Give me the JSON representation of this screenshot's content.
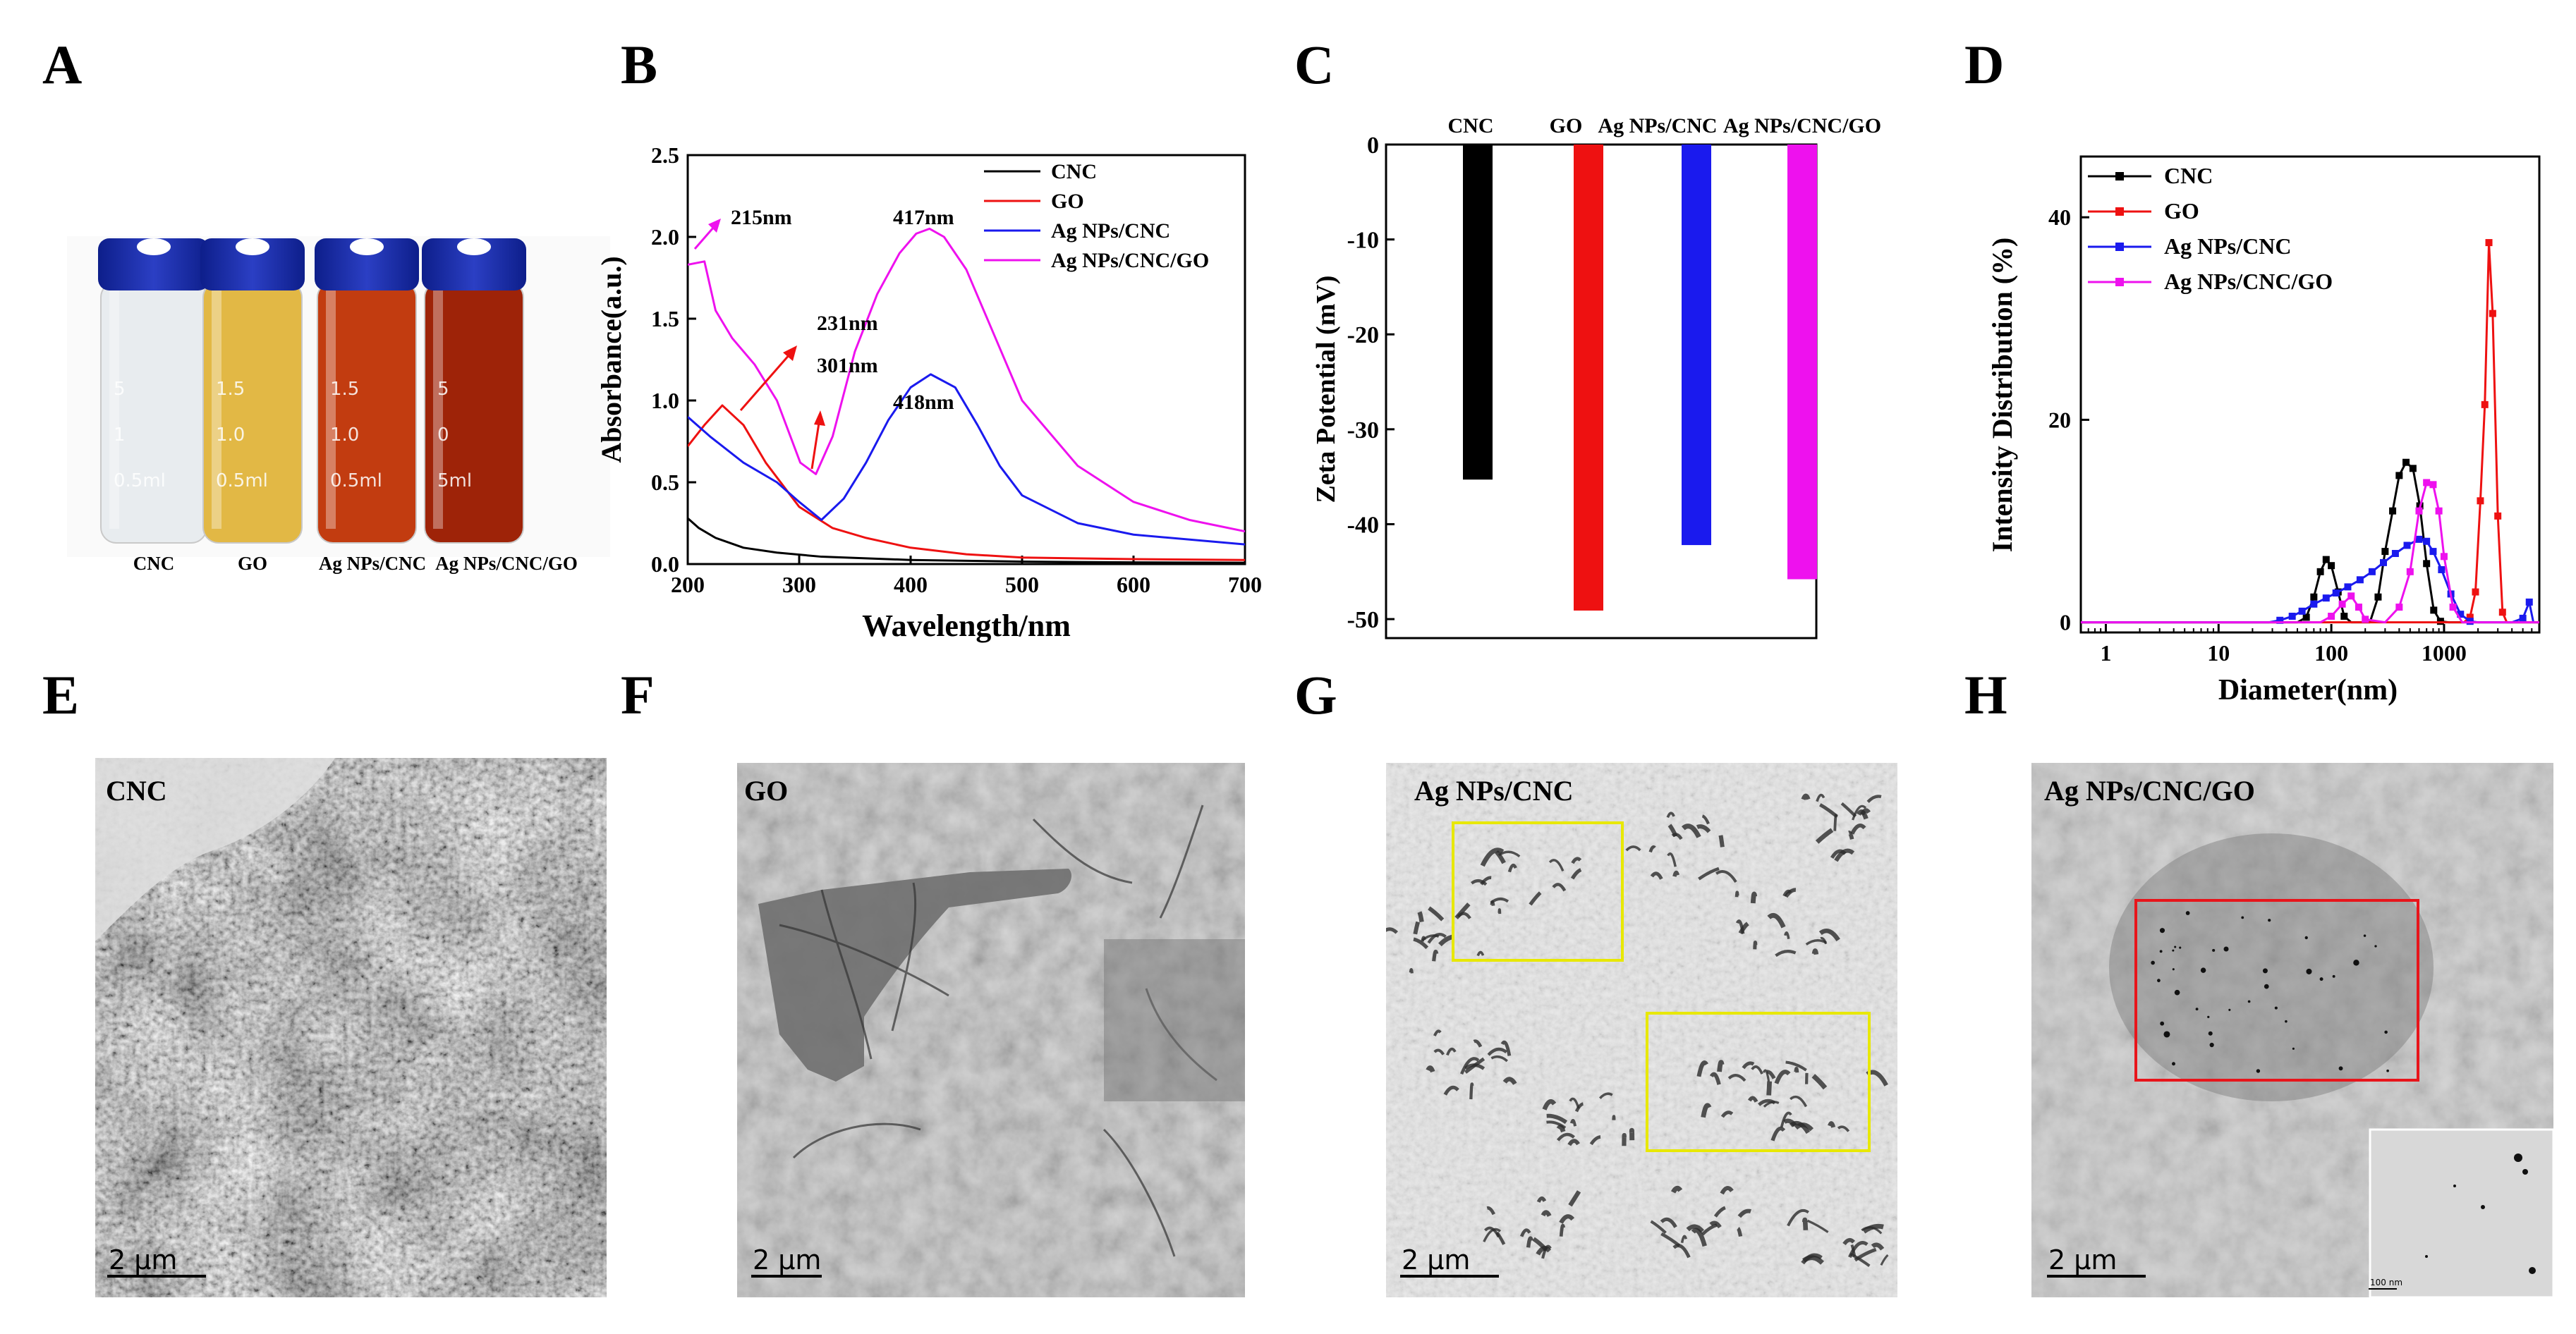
{
  "panel_letters": [
    "A",
    "B",
    "C",
    "D",
    "E",
    "F",
    "G",
    "H"
  ],
  "colors": {
    "CNC": "#000000",
    "GO": "#ee1111",
    "Ag NPs/CNC": "#1a1aee",
    "Ag NPs/CNC/GO": "#ee11ee",
    "box_yellow": "#e8e800",
    "box_red": "#e8151b"
  },
  "photo_vials": {
    "labels": [
      "CNC",
      "GO",
      "Ag NPs/CNC",
      "Ag NPs/CNC/GO"
    ],
    "vial_markings": [
      [
        "5",
        "1",
        "0.5ml"
      ],
      [
        "1.5",
        "1.0",
        "0.5ml"
      ],
      [
        "1.5",
        "1.0",
        "0.5ml"
      ],
      [
        "5",
        "0",
        "5ml"
      ]
    ],
    "liquid_colors": [
      "#e8ecef",
      "#e2b845",
      "#c23c10",
      "#9e2308"
    ]
  },
  "chart_data": [
    {
      "panel": "B",
      "type": "line",
      "xlabel": "Wavelength/nm",
      "ylabel": "Absorbance(a.u.)",
      "xlim": [
        200,
        700
      ],
      "ylim": [
        0,
        2.5
      ],
      "xticks": [
        "200",
        "300",
        "400",
        "500",
        "600",
        "700"
      ],
      "yticks": [
        "0.0",
        "0.5",
        "1.0",
        "1.5",
        "2.0",
        "2.5"
      ],
      "legend": [
        "CNC",
        "GO",
        "Ag NPs/CNC",
        "Ag NPs/CNC/GO"
      ],
      "series": [
        {
          "name": "CNC",
          "x": [
            200,
            210,
            225,
            250,
            280,
            320,
            400,
            500,
            600,
            700
          ],
          "y": [
            0.28,
            0.22,
            0.16,
            0.1,
            0.07,
            0.045,
            0.025,
            0.015,
            0.01,
            0.008
          ]
        },
        {
          "name": "GO",
          "x": [
            200,
            215,
            231,
            250,
            270,
            300,
            330,
            360,
            400,
            450,
            500,
            600,
            700
          ],
          "y": [
            0.72,
            0.85,
            0.97,
            0.85,
            0.62,
            0.35,
            0.22,
            0.16,
            0.1,
            0.06,
            0.04,
            0.03,
            0.025
          ]
        },
        {
          "name": "Ag NPs/CNC",
          "x": [
            200,
            220,
            250,
            280,
            300,
            320,
            340,
            360,
            380,
            400,
            418,
            440,
            460,
            480,
            500,
            550,
            600,
            700
          ],
          "y": [
            0.9,
            0.78,
            0.62,
            0.5,
            0.38,
            0.27,
            0.4,
            0.62,
            0.88,
            1.08,
            1.16,
            1.08,
            0.85,
            0.6,
            0.42,
            0.25,
            0.18,
            0.12
          ]
        },
        {
          "name": "Ag NPs/CNC/GO",
          "x": [
            200,
            215,
            225,
            240,
            260,
            280,
            301,
            315,
            330,
            350,
            370,
            390,
            405,
            417,
            430,
            450,
            475,
            500,
            550,
            600,
            650,
            700
          ],
          "y": [
            1.83,
            1.85,
            1.55,
            1.38,
            1.22,
            1.0,
            0.62,
            0.55,
            0.78,
            1.3,
            1.65,
            1.9,
            2.02,
            2.05,
            2.0,
            1.8,
            1.4,
            1.0,
            0.6,
            0.38,
            0.27,
            0.2
          ]
        }
      ],
      "annotations": [
        {
          "text": "215nm",
          "series": "Ag NPs/CNC/GO"
        },
        {
          "text": "417nm",
          "series": "Ag NPs/CNC/GO"
        },
        {
          "text": "231nm",
          "series": "GO"
        },
        {
          "text": "301nm",
          "series": "Ag NPs/CNC/GO"
        },
        {
          "text": "418nm",
          "series": "Ag NPs/CNC"
        }
      ]
    },
    {
      "panel": "C",
      "type": "bar",
      "ylabel": "Zeta Potential  (mV)",
      "ylim": [
        -52,
        0
      ],
      "yticks": [
        "0",
        "-10",
        "-20",
        "-30",
        "-40",
        "-50"
      ],
      "categories": [
        "CNC",
        "GO",
        "Ag NPs/CNC",
        "Ag NPs/CNC/GO"
      ],
      "values": [
        -35.3,
        -49.1,
        -42.2,
        -45.8
      ]
    },
    {
      "panel": "D",
      "type": "line",
      "xlabel": "Diameter(nm)",
      "ylabel": "Intensity Distribution (%)",
      "xscale": "log",
      "xlim": [
        0.6,
        7000
      ],
      "ylim": [
        -1,
        46
      ],
      "xticks": [
        "1",
        "10",
        "100",
        "1000"
      ],
      "yticks": [
        "0",
        "20",
        "40"
      ],
      "legend": [
        "CNC",
        " GO",
        "Ag NPs/CNC",
        "Ag NPs/CNC/GO"
      ],
      "series": [
        {
          "name": "CNC",
          "x": [
            0.6,
            50,
            60,
            70,
            80,
            90,
            100,
            115,
            130,
            150,
            180,
            220,
            260,
            300,
            350,
            400,
            460,
            530,
            610,
            700,
            810,
            930,
            1100,
            7000
          ],
          "y": [
            0,
            0,
            0.5,
            2.5,
            5,
            6.2,
            5.6,
            3,
            0.6,
            0,
            0,
            0,
            2.5,
            7,
            11,
            14.5,
            15.8,
            15.2,
            11.5,
            5.8,
            1.2,
            0.1,
            0,
            0
          ]
        },
        {
          "name": "GO",
          "x": [
            0.6,
            1200,
            1500,
            1700,
            1900,
            2100,
            2300,
            2500,
            2700,
            3000,
            3300,
            3600,
            7000
          ],
          "y": [
            0,
            0,
            0,
            0.5,
            3,
            12,
            21.5,
            37.5,
            30.5,
            10.5,
            1,
            0,
            0
          ]
        },
        {
          "name": "Ag NPs/CNC",
          "x": [
            0.6,
            28,
            35,
            45,
            55,
            70,
            90,
            110,
            140,
            180,
            230,
            290,
            370,
            470,
            600,
            700,
            800,
            950,
            1150,
            1400,
            1700,
            2000,
            3000,
            4000,
            5000,
            5700,
            6200
          ],
          "y": [
            0,
            0,
            0.2,
            0.6,
            1.1,
            1.8,
            2.4,
            2.9,
            3.5,
            4.2,
            5,
            5.9,
            6.8,
            7.6,
            8.2,
            8.0,
            7.0,
            5.2,
            2.8,
            0.8,
            0.1,
            0,
            0,
            0,
            0.4,
            2,
            0
          ]
        },
        {
          "name": "Ag NPs/CNC/GO",
          "x": [
            0.6,
            80,
            100,
            125,
            150,
            175,
            200,
            300,
            400,
            500,
            600,
            700,
            800,
            900,
            1000,
            1200,
            1450,
            7000
          ],
          "y": [
            0,
            0,
            0.6,
            1.8,
            2.6,
            1.5,
            0.3,
            0,
            1.5,
            5,
            11,
            13.8,
            13.6,
            11,
            6.5,
            1.5,
            0,
            0
          ]
        }
      ]
    }
  ],
  "tem_images": [
    {
      "panel": "E",
      "label": "CNC",
      "scale": "2 μm"
    },
    {
      "panel": "F",
      "label": "GO",
      "scale": "2 μm"
    },
    {
      "panel": "G",
      "label": "Ag NPs/CNC",
      "scale": "2 μm"
    },
    {
      "panel": "H",
      "label": "Ag NPs/CNC/GO",
      "scale": "2 μm",
      "inset_scale": "100 nm"
    }
  ]
}
